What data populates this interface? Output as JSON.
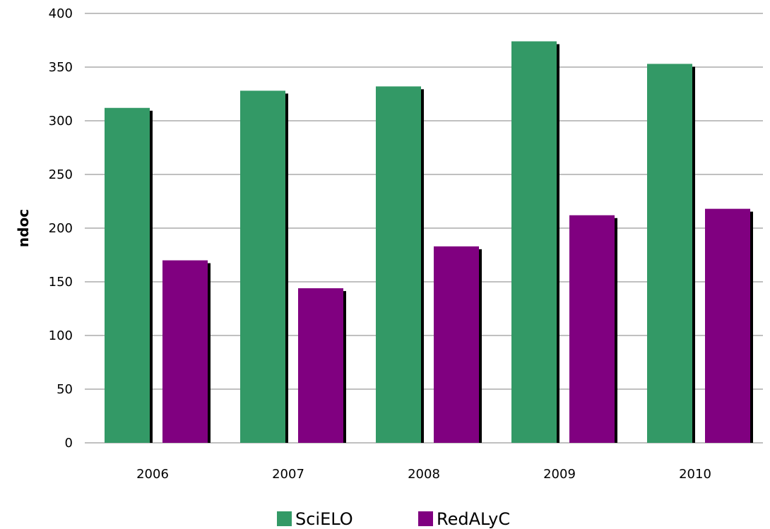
{
  "chart_data": {
    "type": "bar",
    "categories": [
      "2006",
      "2007",
      "2008",
      "2009",
      "2010"
    ],
    "series": [
      {
        "name": "SciELO",
        "values": [
          312,
          328,
          332,
          374,
          353
        ],
        "color": "#339966"
      },
      {
        "name": "RedALyC",
        "values": [
          170,
          144,
          183,
          212,
          218
        ],
        "color": "#800080"
      }
    ],
    "title": "",
    "xlabel": "",
    "ylabel": "ndoc",
    "ylim": [
      0,
      400
    ],
    "yticks": [
      "0",
      "50",
      "100",
      "150",
      "200",
      "250",
      "300",
      "350",
      "400"
    ],
    "grid": true,
    "legend_position": "bottom",
    "shadow_color": "#000000"
  }
}
